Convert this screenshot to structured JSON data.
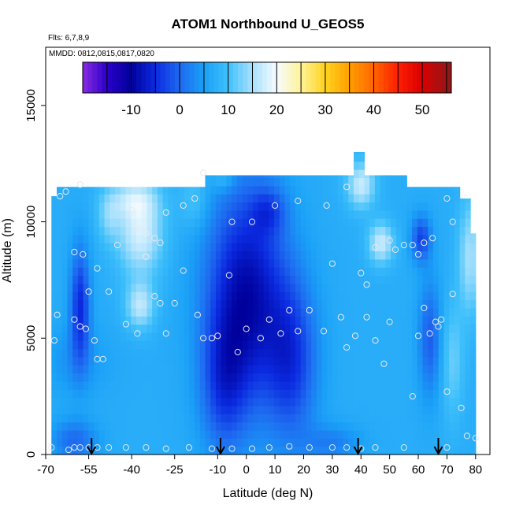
{
  "chart_data": {
    "type": "heatmap",
    "title": "ATOM1 Northbound U_GEOS5",
    "subtitle_flights": "Flts: 6,7,8,9",
    "subtitle_dates": "MMDD: 0812,0815,0817,0820",
    "xlabel": "Latitude (deg N)",
    "ylabel": "Altitude (m)",
    "xlim": [
      -70,
      85
    ],
    "ylim": [
      0,
      17500
    ],
    "x_ticks": [
      -70,
      -55,
      -40,
      -25,
      -10,
      0,
      10,
      20,
      30,
      40,
      50,
      60,
      70,
      80
    ],
    "x_tick_labels": [
      "-70",
      "-55",
      "-40",
      "-25",
      "-10",
      "0",
      "10",
      "20",
      "30",
      "40",
      "50",
      "60",
      "70",
      "80"
    ],
    "y_ticks": [
      0,
      5000,
      10000,
      15000
    ],
    "y_tick_labels": [
      "0",
      "5000",
      "10000",
      "15000"
    ],
    "colorbar": {
      "range": [
        -20,
        56
      ],
      "ticks": [
        -10,
        0,
        10,
        20,
        30,
        40,
        50
      ],
      "tick_labels": [
        "-10",
        "0",
        "10",
        "20",
        "30",
        "40",
        "50"
      ],
      "colors": [
        {
          "v": -20,
          "c": "#8a2be2"
        },
        {
          "v": -15,
          "c": "#2a00c8"
        },
        {
          "v": -10,
          "c": "#00009c"
        },
        {
          "v": -5,
          "c": "#0b2ae0"
        },
        {
          "v": 0,
          "c": "#1e6af0"
        },
        {
          "v": 5,
          "c": "#1aa0f7"
        },
        {
          "v": 10,
          "c": "#3fc0fb"
        },
        {
          "v": 15,
          "c": "#a8e0fc"
        },
        {
          "v": 20,
          "c": "#f6fbff"
        },
        {
          "v": 25,
          "c": "#fff39a"
        },
        {
          "v": 30,
          "c": "#ffd21e"
        },
        {
          "v": 35,
          "c": "#ff9f00"
        },
        {
          "v": 40,
          "c": "#ff6400"
        },
        {
          "v": 45,
          "c": "#ff1e00"
        },
        {
          "v": 50,
          "c": "#d80000"
        },
        {
          "v": 56,
          "c": "#8b1a1a"
        }
      ]
    },
    "arrows_latitude": [
      -54,
      -9,
      39,
      67
    ],
    "observation_points": [
      [
        -68,
        300
      ],
      [
        -62,
        200
      ],
      [
        -60,
        300
      ],
      [
        -58,
        300
      ],
      [
        -55,
        300
      ],
      [
        -52,
        300
      ],
      [
        -48,
        300
      ],
      [
        -42,
        300
      ],
      [
        -35,
        300
      ],
      [
        -28,
        250
      ],
      [
        -20,
        300
      ],
      [
        -12,
        250
      ],
      [
        -5,
        250
      ],
      [
        2,
        250
      ],
      [
        8,
        300
      ],
      [
        15,
        350
      ],
      [
        22,
        300
      ],
      [
        30,
        300
      ],
      [
        35,
        300
      ],
      [
        40,
        250
      ],
      [
        45,
        300
      ],
      [
        55,
        300
      ],
      [
        70,
        300
      ],
      [
        -66,
        6000
      ],
      [
        -67,
        4900
      ],
      [
        -60,
        5800
      ],
      [
        -58,
        5500
      ],
      [
        -56,
        5400
      ],
      [
        -55,
        7000
      ],
      [
        -53,
        4900
      ],
      [
        -52,
        4100
      ],
      [
        -50,
        4100
      ],
      [
        -48,
        7000
      ],
      [
        -42,
        5600
      ],
      [
        -38,
        5200
      ],
      [
        -35,
        8500
      ],
      [
        -32,
        6800
      ],
      [
        -30,
        6500
      ],
      [
        -28,
        5200
      ],
      [
        -25,
        6500
      ],
      [
        -22,
        7900
      ],
      [
        -17,
        6000
      ],
      [
        -15,
        5000
      ],
      [
        -12,
        5000
      ],
      [
        -10,
        5100
      ],
      [
        -6,
        7700
      ],
      [
        -3,
        4400
      ],
      [
        0,
        5400
      ],
      [
        5,
        5000
      ],
      [
        8,
        5800
      ],
      [
        12,
        5200
      ],
      [
        15,
        6200
      ],
      [
        18,
        5300
      ],
      [
        22,
        6200
      ],
      [
        27,
        5300
      ],
      [
        30,
        8200
      ],
      [
        33,
        5900
      ],
      [
        35,
        4600
      ],
      [
        38,
        5100
      ],
      [
        40,
        7800
      ],
      [
        42,
        7300
      ],
      [
        45,
        4900
      ],
      [
        48,
        3900
      ],
      [
        50,
        5700
      ],
      [
        58,
        2500
      ],
      [
        60,
        5100
      ],
      [
        62,
        6300
      ],
      [
        64,
        5200
      ],
      [
        66,
        5700
      ],
      [
        67,
        5500
      ],
      [
        68,
        5800
      ],
      [
        70,
        2700
      ],
      [
        72,
        6900
      ],
      [
        75,
        2000
      ],
      [
        77,
        800
      ],
      [
        80,
        700
      ],
      [
        -45,
        9000
      ],
      [
        -40,
        10500
      ],
      [
        -38,
        9700
      ],
      [
        -35,
        9500
      ],
      [
        -32,
        9300
      ],
      [
        -30,
        9100
      ],
      [
        -28,
        10400
      ],
      [
        -22,
        10700
      ],
      [
        -18,
        11000
      ],
      [
        -15,
        12100
      ],
      [
        -60,
        8700
      ],
      [
        -57,
        8600
      ],
      [
        -52,
        8000
      ],
      [
        -65,
        11100
      ],
      [
        -63,
        11300
      ],
      [
        -58,
        11600
      ],
      [
        -5,
        10000
      ],
      [
        2,
        10000
      ],
      [
        10,
        10700
      ],
      [
        18,
        10900
      ],
      [
        28,
        10700
      ],
      [
        35,
        11500
      ],
      [
        45,
        8900
      ],
      [
        50,
        9200
      ],
      [
        52,
        8800
      ],
      [
        55,
        9000
      ],
      [
        58,
        9000
      ],
      [
        62,
        9100
      ],
      [
        70,
        11000
      ],
      [
        72,
        10000
      ],
      [
        65,
        9300
      ],
      [
        60,
        8600
      ],
      [
        42,
        5900
      ]
    ]
  }
}
